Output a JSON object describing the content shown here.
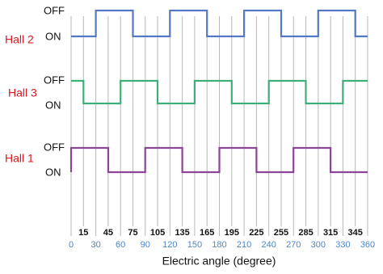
{
  "signals": [
    {
      "label": "Hall 2",
      "off": "OFF",
      "on": "ON"
    },
    {
      "label": "Hall 3",
      "off": "OFF",
      "on": "ON"
    },
    {
      "label": "Hall 1",
      "off": "OFF",
      "on": "ON"
    }
  ],
  "angles_major": [
    0,
    30,
    60,
    90,
    120,
    150,
    180,
    210,
    240,
    270,
    300,
    330,
    360
  ],
  "angles_minor": [
    15,
    45,
    75,
    105,
    135,
    165,
    195,
    225,
    255,
    285,
    315,
    345
  ],
  "axis_title": "Electric angle (degree)"
}
